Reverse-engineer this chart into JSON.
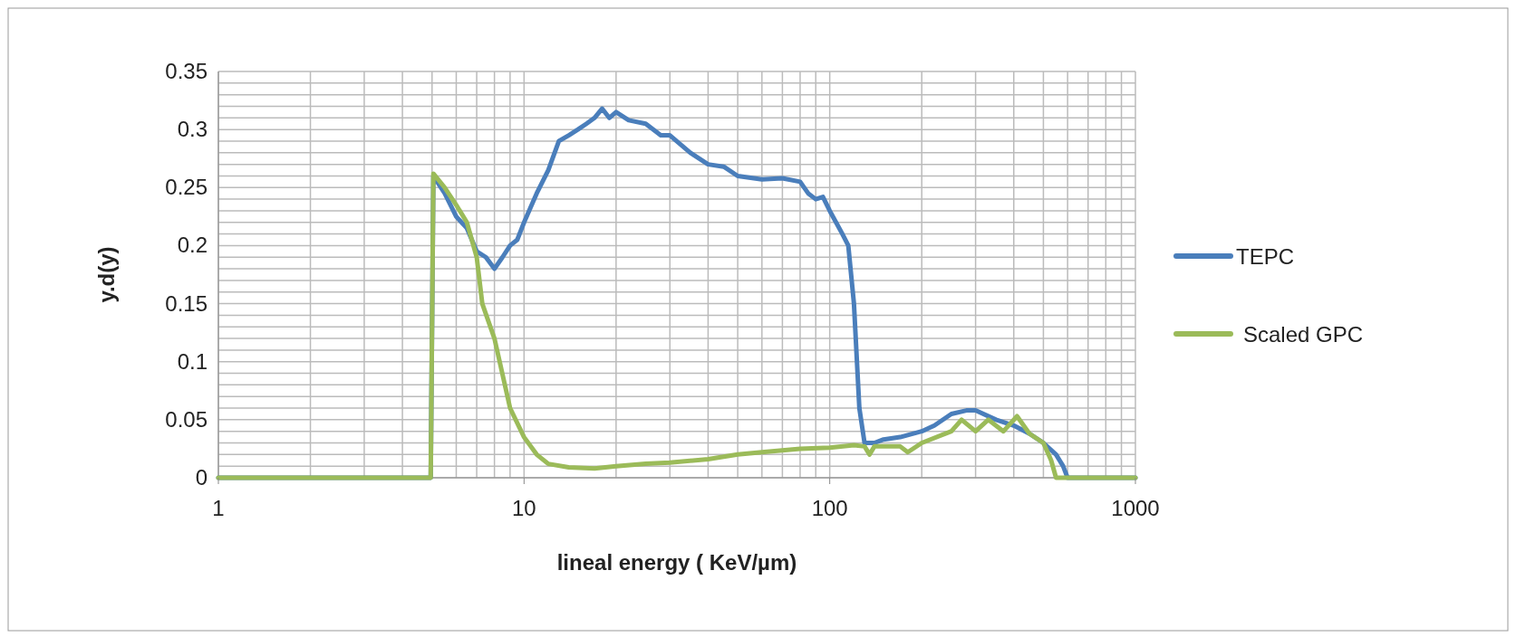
{
  "chart_data": {
    "type": "line",
    "xlabel": "lineal energy  ( KeV/µm)",
    "ylabel": "y.d(y)",
    "log": "x",
    "xlim": [
      1,
      1000
    ],
    "xticks": [
      1,
      10,
      100,
      1000
    ],
    "ylim": [
      0,
      0.35
    ],
    "yticks": [
      0,
      0.05,
      0.1,
      0.15,
      0.2,
      0.25,
      0.3,
      0.35
    ],
    "grid": true,
    "legend": "right",
    "marker": "none",
    "line_style": "solid",
    "series": [
      {
        "name": "TEPC",
        "color": "#4a7ebb",
        "x": [
          1,
          4.95,
          5.05,
          5.5,
          6,
          6.5,
          7,
          7.5,
          8,
          8.5,
          9,
          9.5,
          10,
          11,
          12,
          13,
          14,
          15,
          16,
          17,
          18,
          19,
          20,
          22,
          25,
          28,
          30,
          35,
          40,
          45,
          50,
          60,
          70,
          80,
          85,
          90,
          95,
          100,
          110,
          115,
          120,
          125,
          130,
          140,
          150,
          170,
          200,
          220,
          250,
          280,
          300,
          350,
          400,
          450,
          500,
          550,
          580,
          600,
          1000
        ],
        "values": [
          0,
          0,
          0.26,
          0.245,
          0.225,
          0.215,
          0.195,
          0.19,
          0.18,
          0.19,
          0.2,
          0.205,
          0.22,
          0.245,
          0.265,
          0.29,
          0.295,
          0.3,
          0.305,
          0.31,
          0.318,
          0.31,
          0.315,
          0.308,
          0.305,
          0.295,
          0.295,
          0.28,
          0.27,
          0.268,
          0.26,
          0.257,
          0.258,
          0.255,
          0.245,
          0.24,
          0.242,
          0.23,
          0.21,
          0.2,
          0.15,
          0.06,
          0.03,
          0.03,
          0.033,
          0.035,
          0.04,
          0.045,
          0.055,
          0.058,
          0.058,
          0.05,
          0.045,
          0.038,
          0.03,
          0.02,
          0.01,
          0,
          0
        ]
      },
      {
        "name": "Scaled GPC",
        "color": "#9bbb59",
        "x": [
          1,
          4.95,
          5.05,
          5.5,
          6,
          6.5,
          7,
          7.3,
          8,
          9,
          10,
          11,
          12,
          14,
          17,
          20,
          25,
          30,
          40,
          50,
          60,
          80,
          100,
          120,
          130,
          135,
          140,
          170,
          180,
          200,
          250,
          270,
          300,
          330,
          370,
          410,
          450,
          500,
          530,
          550,
          1000
        ],
        "values": [
          0,
          0,
          0.262,
          0.25,
          0.235,
          0.22,
          0.19,
          0.15,
          0.12,
          0.06,
          0.035,
          0.02,
          0.012,
          0.009,
          0.008,
          0.01,
          0.012,
          0.013,
          0.016,
          0.02,
          0.022,
          0.025,
          0.026,
          0.028,
          0.027,
          0.02,
          0.027,
          0.027,
          0.022,
          0.03,
          0.04,
          0.05,
          0.04,
          0.05,
          0.04,
          0.053,
          0.038,
          0.03,
          0.015,
          0,
          0
        ]
      }
    ]
  }
}
